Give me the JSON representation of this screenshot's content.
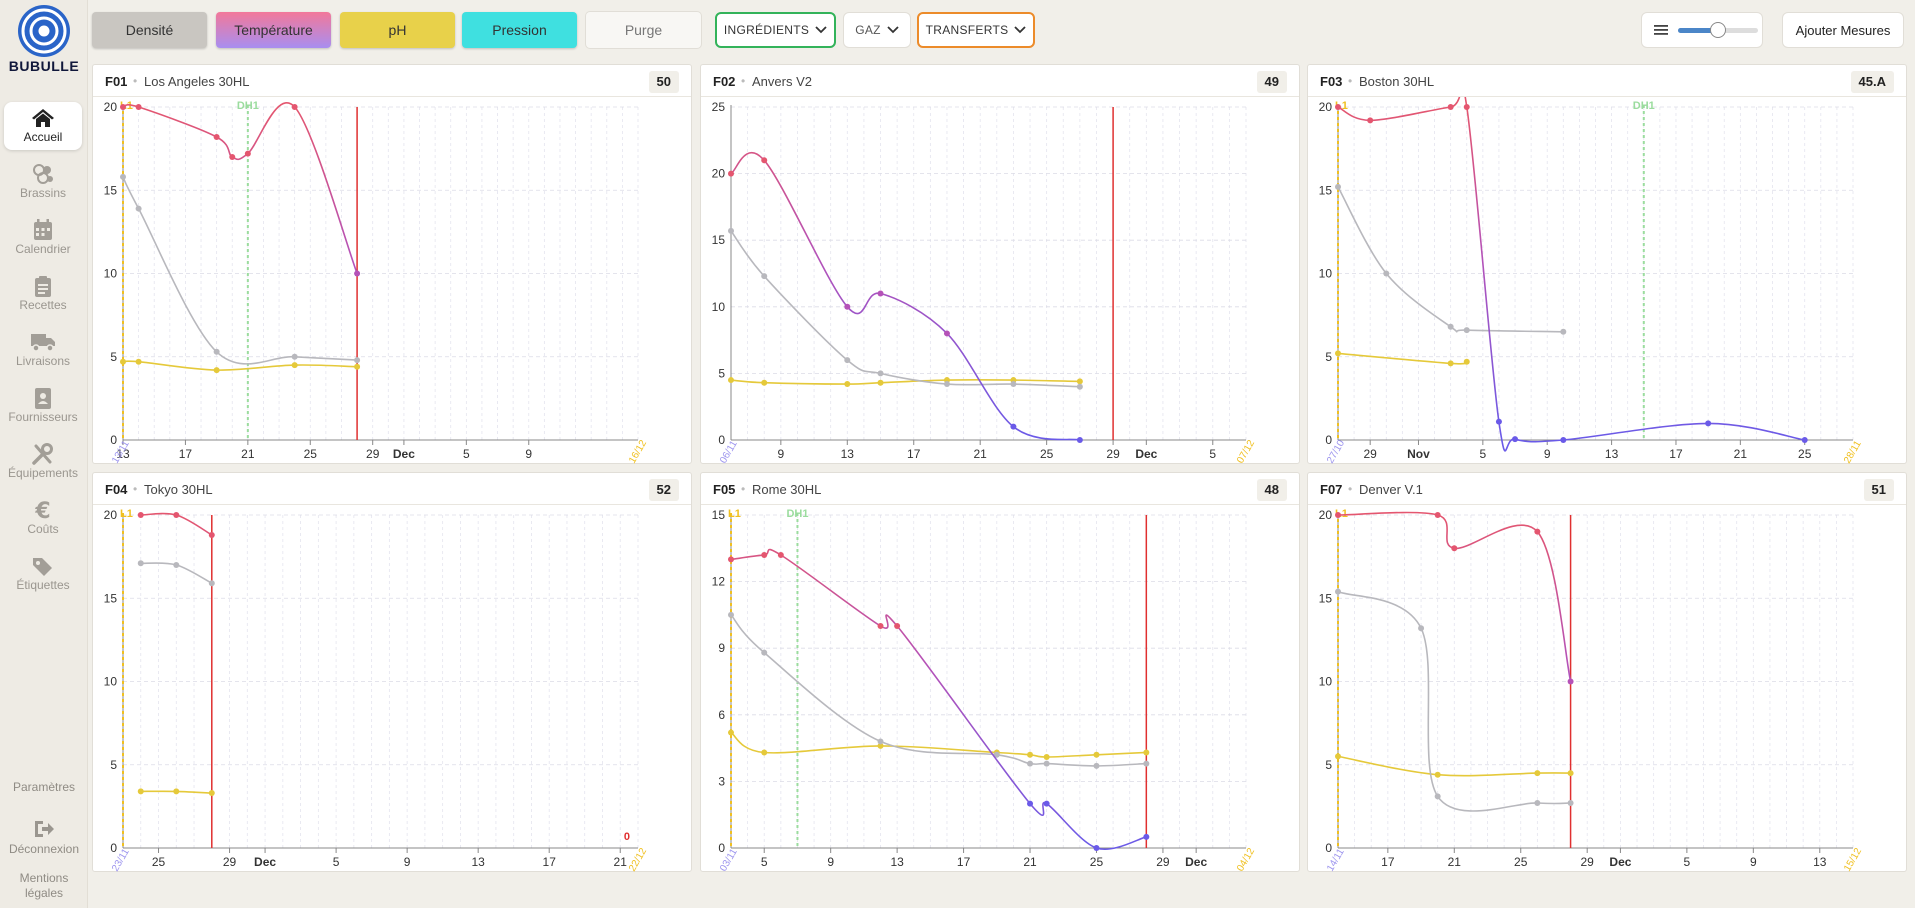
{
  "app": {
    "brand": "BUBULLE"
  },
  "sidebar": {
    "items": [
      {
        "label": "Accueil",
        "icon": "home-icon",
        "active": true
      },
      {
        "label": "Brassins",
        "icon": "brassins-icon"
      },
      {
        "label": "Calendrier",
        "icon": "calendar-icon"
      },
      {
        "label": "Recettes",
        "icon": "clipboard-icon"
      },
      {
        "label": "Livraisons",
        "icon": "truck-icon"
      },
      {
        "label": "Fournisseurs",
        "icon": "id-card-icon"
      },
      {
        "label": "Équipements",
        "icon": "tools-icon"
      },
      {
        "label": "Coûts",
        "icon": "euro-icon"
      },
      {
        "label": "Étiquettes",
        "icon": "tags-icon"
      }
    ],
    "params": "Paramètres",
    "logout": "Déconnexion",
    "legal1": "Mentions",
    "legal2": "légales"
  },
  "toolbar": {
    "toggles": [
      {
        "label": "Densité",
        "color": "#c9c6c1"
      },
      {
        "label": "Température",
        "color": "gradient-red-purple"
      },
      {
        "label": "pH",
        "color": "#e8d14a"
      },
      {
        "label": "Pression",
        "color": "#3fe0e0"
      },
      {
        "label": "Purge",
        "color": "#f8f7f4"
      }
    ],
    "ingredients": "INGRÉDIENTS",
    "gaz": "GAZ",
    "transferts": "TRANSFERTS",
    "add_measures": "Ajouter Mesures",
    "slider_value": 0.5,
    "colors": {
      "ingredients": "#33b35a",
      "transferts": "#ec8b2a",
      "densite": "#b8b8bd",
      "temperature_hot": "#e4566f",
      "temperature_cold": "#6a5ae8",
      "ph": "#e5c93a",
      "transfer_line": "#e03030",
      "dh_line": "#9bdc9e",
      "l1_line": "#f0c020",
      "slider": "#4b86c8"
    }
  },
  "panels": [
    {
      "id": "F01",
      "name": "Los Angeles 30HL",
      "badge": "50",
      "chart_data": {
        "type": "line",
        "x_ticks": [
          "17",
          "21",
          "25",
          "29",
          "Dec",
          "5",
          "9",
          "13"
        ],
        "x_range": [
          "2022-11-13",
          "2022-12-16"
        ],
        "start_label": "13/11",
        "end_label": "16/12",
        "y_ticks": [
          "0",
          "5",
          "10",
          "15",
          "20"
        ],
        "ylim": [
          0,
          20
        ],
        "markers": [
          {
            "label": "L1",
            "date": "2022-11-13"
          },
          {
            "label": "DH1",
            "date": "2022-11-21"
          }
        ],
        "transfer_date": "2022-11-28",
        "series": [
          {
            "key": "temperature",
            "dates": [
              "2022-11-13",
              "2022-11-14",
              "2022-11-19",
              "2022-11-20",
              "2022-11-21",
              "2022-11-24",
              "2022-11-28"
            ],
            "values": [
              20,
              20,
              18.2,
              17,
              17.2,
              20,
              10
            ]
          },
          {
            "key": "densite",
            "dates": [
              "2022-11-13",
              "2022-11-14",
              "2022-11-19",
              "2022-11-24",
              "2022-11-28"
            ],
            "values": [
              15.8,
              13.9,
              5.3,
              5.0,
              4.8
            ]
          },
          {
            "key": "ph",
            "dates": [
              "2022-11-13",
              "2022-11-14",
              "2022-11-19",
              "2022-11-24",
              "2022-11-28"
            ],
            "values": [
              4.7,
              4.7,
              4.2,
              4.5,
              4.4
            ]
          }
        ]
      }
    },
    {
      "id": "F02",
      "name": "Anvers V2",
      "badge": "49",
      "chart_data": {
        "type": "line",
        "x_ticks": [
          "9",
          "13",
          "17",
          "21",
          "25",
          "29",
          "Dec",
          "5"
        ],
        "x_range": [
          "2022-11-06",
          "2022-12-07"
        ],
        "start_label": "06/11",
        "end_label": "07/12",
        "y_ticks": [
          "0",
          "5",
          "10",
          "15",
          "20",
          "25"
        ],
        "ylim": [
          0,
          25
        ],
        "markers": [],
        "transfer_date": "2022-11-29",
        "series": [
          {
            "key": "temperature",
            "dates": [
              "2022-11-06",
              "2022-11-08",
              "2022-11-13",
              "2022-11-15",
              "2022-11-19",
              "2022-11-23",
              "2022-11-27"
            ],
            "values": [
              20,
              21,
              10,
              11,
              8,
              1,
              0
            ]
          },
          {
            "key": "densite",
            "dates": [
              "2022-11-06",
              "2022-11-08",
              "2022-11-13",
              "2022-11-15",
              "2022-11-19",
              "2022-11-23",
              "2022-11-27"
            ],
            "values": [
              15.7,
              12.3,
              6.0,
              5.0,
              4.2,
              4.2,
              4.0
            ]
          },
          {
            "key": "ph",
            "dates": [
              "2022-11-06",
              "2022-11-08",
              "2022-11-13",
              "2022-11-15",
              "2022-11-19",
              "2022-11-23",
              "2022-11-27"
            ],
            "values": [
              4.5,
              4.3,
              4.2,
              4.3,
              4.5,
              4.5,
              4.4
            ]
          }
        ]
      }
    },
    {
      "id": "F03",
      "name": "Boston 30HL",
      "badge": "45.A",
      "chart_data": {
        "type": "line",
        "x_ticks": [
          "29",
          "Nov",
          "5",
          "9",
          "13",
          "17",
          "21",
          "25"
        ],
        "x_range": [
          "2022-10-27",
          "2022-11-28"
        ],
        "start_label": "27/10",
        "end_label": "28/11",
        "y_ticks": [
          "0",
          "5",
          "10",
          "15",
          "20"
        ],
        "ylim": [
          0,
          20
        ],
        "markers": [
          {
            "label": "L1",
            "date": "2022-10-27"
          },
          {
            "label": "DH1",
            "date": "2022-11-15"
          }
        ],
        "transfer_date": null,
        "series": [
          {
            "key": "temperature",
            "dates": [
              "2022-10-27",
              "2022-10-29",
              "2022-11-03",
              "2022-11-04",
              "2022-11-06",
              "2022-11-07",
              "2022-11-10",
              "2022-11-19",
              "2022-11-25"
            ],
            "values": [
              20,
              19.2,
              20,
              20,
              1.1,
              0.05,
              0,
              1.0,
              0
            ]
          },
          {
            "key": "densite",
            "dates": [
              "2022-10-27",
              "2022-10-30",
              "2022-11-03",
              "2022-11-04",
              "2022-11-10"
            ],
            "values": [
              15.2,
              10.0,
              6.8,
              6.6,
              6.5
            ]
          },
          {
            "key": "ph",
            "dates": [
              "2022-10-27",
              "2022-11-03",
              "2022-11-04"
            ],
            "values": [
              5.2,
              4.6,
              4.7
            ]
          }
        ]
      }
    },
    {
      "id": "F04",
      "name": "Tokyo 30HL",
      "badge": "52",
      "chart_data": {
        "type": "line",
        "x_ticks": [
          "25",
          "29",
          "Dec",
          "5",
          "9",
          "13",
          "17",
          "21"
        ],
        "x_range": [
          "2022-11-23",
          "2022-12-22"
        ],
        "start_label": "23/11",
        "end_label": "22/12",
        "y_ticks": [
          "0",
          "5",
          "10",
          "15",
          "20"
        ],
        "ylim": [
          0,
          20
        ],
        "markers": [
          {
            "label": "L1",
            "date": "2022-11-23"
          }
        ],
        "transfer_date": "2022-11-28",
        "corner_value": "0",
        "series": [
          {
            "key": "temperature",
            "dates": [
              "2022-11-24",
              "2022-11-26",
              "2022-11-28"
            ],
            "values": [
              20,
              20,
              18.8
            ]
          },
          {
            "key": "densite",
            "dates": [
              "2022-11-24",
              "2022-11-26",
              "2022-11-28"
            ],
            "values": [
              17.1,
              17.0,
              15.9
            ]
          },
          {
            "key": "ph",
            "dates": [
              "2022-11-24",
              "2022-11-26",
              "2022-11-28"
            ],
            "values": [
              3.4,
              3.4,
              3.3
            ]
          }
        ]
      }
    },
    {
      "id": "F05",
      "name": "Rome 30HL",
      "badge": "48",
      "chart_data": {
        "type": "line",
        "x_ticks": [
          "5",
          "9",
          "13",
          "17",
          "21",
          "25",
          "29",
          "Dec"
        ],
        "x_range": [
          "2022-11-03",
          "2022-12-04"
        ],
        "start_label": "03/11",
        "end_label": "04/12",
        "y_ticks": [
          "0",
          "3",
          "6",
          "9",
          "12",
          "15"
        ],
        "ylim": [
          0,
          15
        ],
        "markers": [
          {
            "label": "L1",
            "date": "2022-11-03"
          },
          {
            "label": "DH1",
            "date": "2022-11-07"
          }
        ],
        "transfer_date": "2022-11-28",
        "series": [
          {
            "key": "temperature",
            "dates": [
              "2022-11-03",
              "2022-11-05",
              "2022-11-06",
              "2022-11-12",
              "2022-11-13",
              "2022-11-21",
              "2022-11-22",
              "2022-11-25",
              "2022-11-28"
            ],
            "values": [
              13,
              13.2,
              13.2,
              10,
              10,
              2,
              2,
              0,
              0.5
            ]
          },
          {
            "key": "densite",
            "dates": [
              "2022-11-03",
              "2022-11-05",
              "2022-11-12",
              "2022-11-19",
              "2022-11-21",
              "2022-11-22",
              "2022-11-25",
              "2022-11-28"
            ],
            "values": [
              10.5,
              8.8,
              4.8,
              4.2,
              3.8,
              3.8,
              3.7,
              3.8
            ]
          },
          {
            "key": "ph",
            "dates": [
              "2022-11-03",
              "2022-11-05",
              "2022-11-12",
              "2022-11-19",
              "2022-11-21",
              "2022-11-22",
              "2022-11-25",
              "2022-11-28"
            ],
            "values": [
              5.2,
              4.3,
              4.6,
              4.3,
              4.2,
              4.1,
              4.2,
              4.3
            ]
          }
        ]
      }
    },
    {
      "id": "F07",
      "name": "Denver V.1",
      "badge": "51",
      "chart_data": {
        "type": "line",
        "x_ticks": [
          "17",
          "21",
          "25",
          "29",
          "Dec",
          "5",
          "9",
          "13"
        ],
        "x_range": [
          "2022-11-14",
          "2022-12-15"
        ],
        "start_label": "14/11",
        "end_label": "15/12",
        "y_ticks": [
          "0",
          "5",
          "10",
          "15",
          "20"
        ],
        "ylim": [
          0,
          20
        ],
        "markers": [
          {
            "label": "L1",
            "date": "2022-11-14"
          }
        ],
        "transfer_date": "2022-11-28",
        "series": [
          {
            "key": "temperature",
            "dates": [
              "2022-11-14",
              "2022-11-20",
              "2022-11-21",
              "2022-11-26",
              "2022-11-28"
            ],
            "values": [
              20,
              20,
              18,
              19,
              10
            ]
          },
          {
            "key": "densite",
            "dates": [
              "2022-11-14",
              "2022-11-19",
              "2022-11-20",
              "2022-11-26",
              "2022-11-28"
            ],
            "values": [
              15.4,
              13.2,
              3.1,
              2.7,
              2.7
            ]
          },
          {
            "key": "ph",
            "dates": [
              "2022-11-14",
              "2022-11-20",
              "2022-11-26",
              "2022-11-28"
            ],
            "values": [
              5.5,
              4.4,
              4.5,
              4.5
            ]
          }
        ]
      }
    }
  ]
}
